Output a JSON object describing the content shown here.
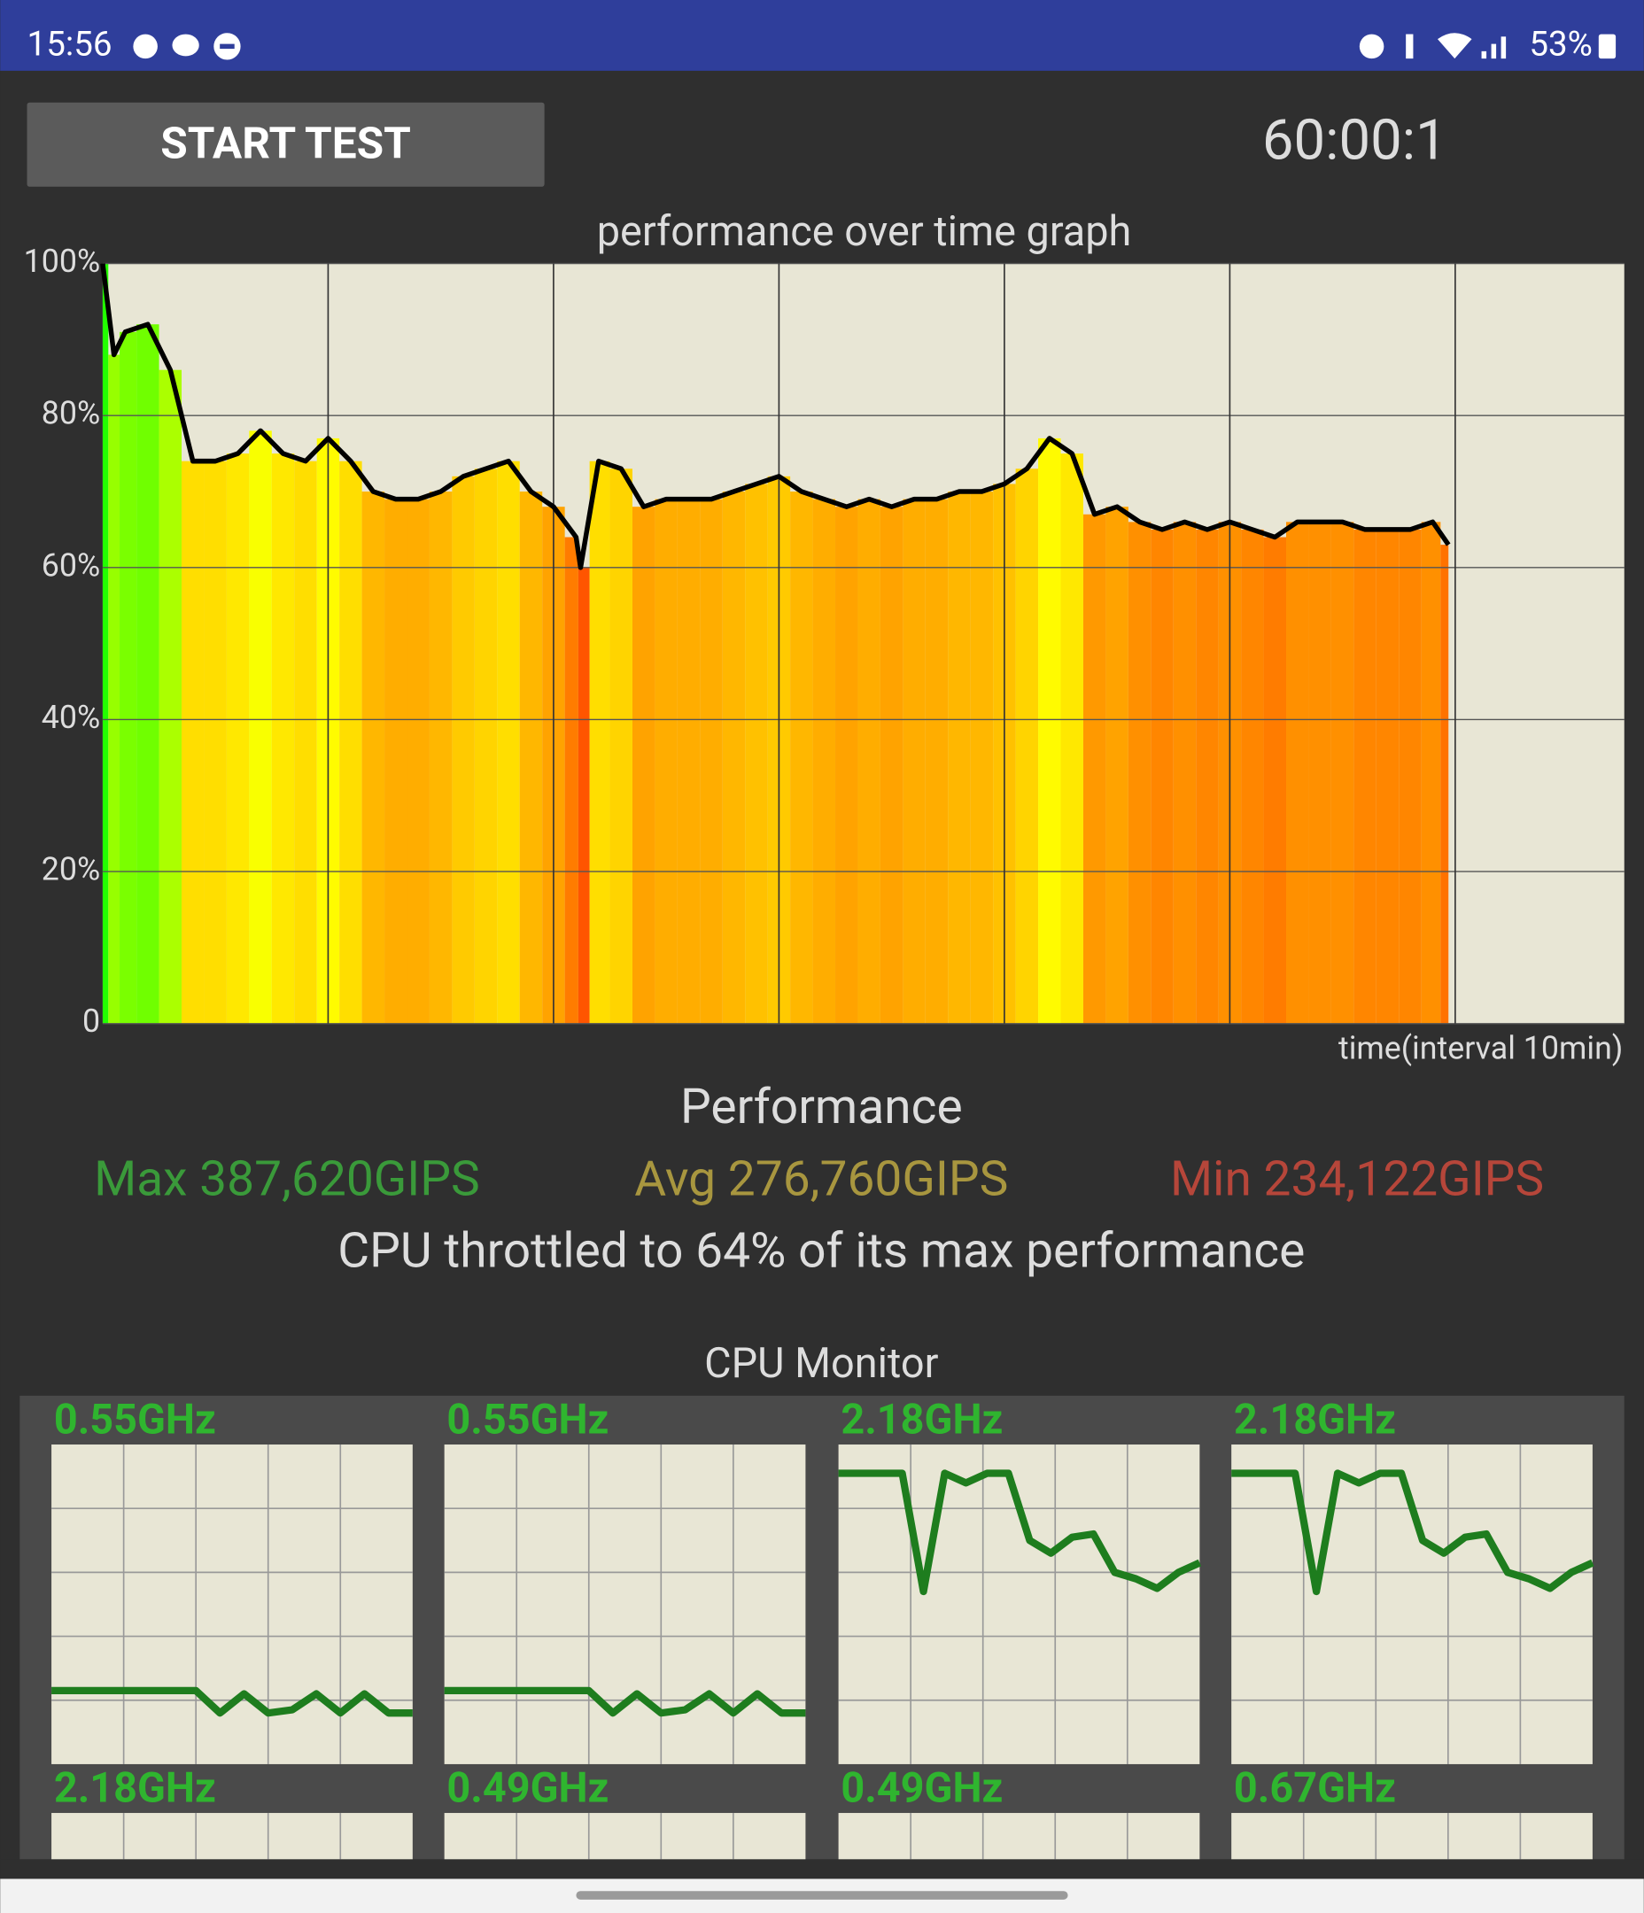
{
  "status_bar": {
    "time": "15:56",
    "battery": "53%"
  },
  "start_button": "START TEST",
  "timer": "60:00:1",
  "chart_data": {
    "type": "line",
    "title": "performance over time graph",
    "x_label": "time(interval 10min)",
    "xlim": [
      0,
      67.5
    ],
    "x_grid_lines": [
      10,
      20,
      30,
      40,
      50,
      60
    ],
    "ylim": [
      0,
      100
    ],
    "yticks": [
      {
        "value": 0,
        "label": "0"
      },
      {
        "value": 20,
        "label": "20%"
      },
      {
        "value": 40,
        "label": "40%"
      },
      {
        "value": 60,
        "label": "60%"
      },
      {
        "value": 80,
        "label": "80%"
      },
      {
        "value": 100,
        "label": "100%"
      }
    ],
    "grid": true,
    "line_color": "#000000",
    "x": [
      0,
      0.5,
      1,
      2,
      3,
      4,
      5,
      6,
      7,
      8,
      9,
      10,
      11,
      12,
      13,
      14,
      15,
      16,
      17,
      18,
      19,
      20,
      21,
      21.2,
      22,
      23,
      24,
      25,
      26,
      27,
      28,
      29,
      30,
      31,
      32,
      33,
      34,
      35,
      36,
      37,
      38,
      39,
      40,
      41,
      42,
      43,
      44,
      45,
      46,
      47,
      48,
      49,
      50,
      51,
      52,
      53,
      54,
      55,
      56,
      57,
      58,
      59,
      59.7
    ],
    "values": [
      100,
      88,
      91,
      92,
      86,
      74,
      74,
      75,
      78,
      75,
      74,
      77,
      74,
      70,
      69,
      69,
      70,
      72,
      73,
      74,
      70,
      68,
      64,
      60,
      74,
      73,
      68,
      69,
      69,
      69,
      70,
      71,
      72,
      70,
      69,
      68,
      69,
      68,
      69,
      69,
      70,
      70,
      71,
      73,
      77,
      75,
      67,
      68,
      66,
      65,
      66,
      65,
      66,
      65,
      64,
      66,
      66,
      66,
      65,
      65,
      65,
      66,
      63
    ]
  },
  "performance": {
    "title": "Performance",
    "max": "Max 387,620GIPS",
    "avg": "Avg 276,760GIPS",
    "min": "Min 234,122GIPS",
    "summary": "CPU throttled to 64% of its max performance"
  },
  "cpu_monitor": {
    "title": "CPU Monitor",
    "history_ylim": [
      0,
      100
    ],
    "line_color": "#1e7d1e",
    "cores": [
      {
        "freq": "0.55GHz",
        "history": [
          23,
          23,
          23,
          23,
          23,
          23,
          23,
          16,
          22,
          16,
          17,
          22,
          16,
          22,
          16,
          16
        ]
      },
      {
        "freq": "0.55GHz",
        "history": [
          23,
          23,
          23,
          23,
          23,
          23,
          23,
          16,
          22,
          16,
          17,
          22,
          16,
          22,
          16,
          16
        ]
      },
      {
        "freq": "2.18GHz",
        "history": [
          91,
          91,
          91,
          91,
          54,
          91,
          88,
          91,
          91,
          70,
          66,
          71,
          72,
          60,
          58,
          55,
          60,
          63
        ]
      },
      {
        "freq": "2.18GHz",
        "history": [
          91,
          91,
          91,
          91,
          54,
          91,
          88,
          91,
          91,
          70,
          66,
          71,
          72,
          60,
          58,
          55,
          60,
          63
        ]
      },
      {
        "freq": "2.18GHz",
        "history": []
      },
      {
        "freq": "0.49GHz",
        "history": []
      },
      {
        "freq": "0.49GHz",
        "history": []
      },
      {
        "freq": "0.67GHz",
        "history": []
      }
    ]
  }
}
